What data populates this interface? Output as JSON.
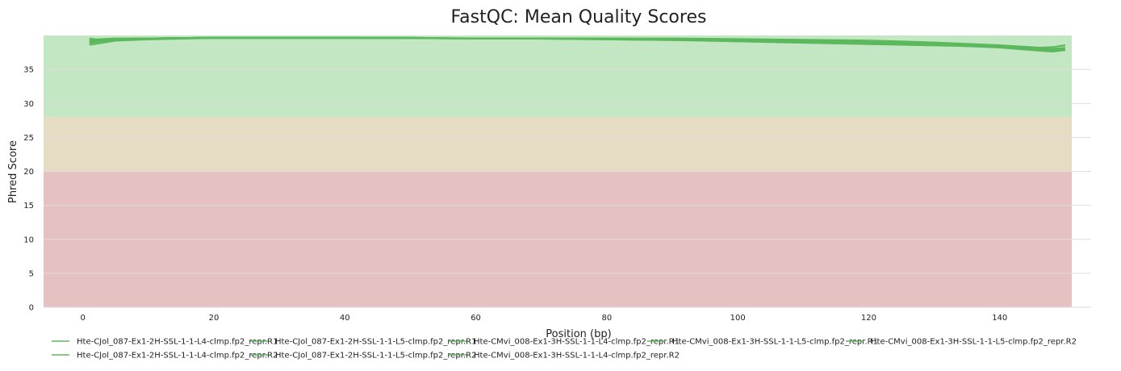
{
  "chart_data": {
    "type": "line",
    "title": "FastQC: Mean Quality Scores",
    "xlabel": "Position (bp)",
    "ylabel": "Phred Score",
    "xlim": [
      -6,
      151
    ],
    "ylim": [
      0,
      40
    ],
    "xticks": [
      0,
      20,
      40,
      60,
      80,
      100,
      120,
      140
    ],
    "yticks": [
      0,
      5,
      10,
      15,
      20,
      25,
      30,
      35
    ],
    "grid": true,
    "legend_position": "bottom",
    "bands": [
      {
        "from": 0,
        "to": 20,
        "color": "#e6c1c1"
      },
      {
        "from": 20,
        "to": 28,
        "color": "#e6dcc4"
      },
      {
        "from": 28,
        "to": 40,
        "color": "#c4e7c3"
      }
    ],
    "line_color": "#5cb85c",
    "x": [
      1,
      3,
      5,
      10,
      20,
      30,
      40,
      50,
      60,
      70,
      80,
      90,
      100,
      110,
      120,
      130,
      140,
      145,
      148,
      150
    ],
    "series": [
      {
        "name": "Hte-CJol_087-Ex1-2H-SSL-1-1-L4-clmp.fp2_repr.R1",
        "values": [
          39.6,
          39.3,
          39.5,
          39.6,
          39.7,
          39.7,
          39.7,
          39.7,
          39.6,
          39.6,
          39.5,
          39.4,
          39.3,
          39.2,
          39.0,
          38.8,
          38.5,
          38.2,
          38.3,
          38.5
        ]
      },
      {
        "name": "Hte-CJol_087-Ex1-2H-SSL-1-1-L5-clmp.fp2_repr.R1",
        "values": [
          38.6,
          38.9,
          39.2,
          39.4,
          39.6,
          39.6,
          39.6,
          39.6,
          39.5,
          39.5,
          39.4,
          39.3,
          39.1,
          38.9,
          38.7,
          38.5,
          38.3,
          38.0,
          37.8,
          37.9
        ]
      },
      {
        "name": "Hte-CMvi_008-Ex1-3H-SSL-1-1-L4-clmp.fp2_repr.R1",
        "values": [
          39.0,
          39.3,
          39.5,
          39.6,
          39.7,
          39.7,
          39.7,
          39.7,
          39.6,
          39.6,
          39.6,
          39.5,
          39.4,
          39.3,
          39.1,
          38.9,
          38.5,
          38.2,
          38.3,
          38.6
        ]
      },
      {
        "name": "Hte-CMvi_008-Ex1-3H-SSL-1-1-L5-clmp.fp2_repr.R1",
        "values": [
          38.8,
          39.1,
          39.3,
          39.5,
          39.6,
          39.6,
          39.6,
          39.6,
          39.5,
          39.5,
          39.4,
          39.3,
          39.2,
          39.0,
          38.8,
          38.6,
          38.3,
          38.0,
          37.7,
          37.9
        ]
      },
      {
        "name": "Hte-CMvi_008-Ex1-3H-SSL-1-1-L5-clmp.fp2_repr.R2",
        "values": [
          39.4,
          39.5,
          39.6,
          39.6,
          39.7,
          39.7,
          39.7,
          39.6,
          39.6,
          39.6,
          39.6,
          39.6,
          39.5,
          39.4,
          39.3,
          39.0,
          38.6,
          38.3,
          38.1,
          38.2
        ]
      },
      {
        "name": "Hte-CJol_087-Ex1-2H-SSL-1-1-L4-clmp.fp2_repr.R2",
        "values": [
          38.9,
          39.2,
          39.4,
          39.5,
          39.6,
          39.6,
          39.6,
          39.6,
          39.6,
          39.5,
          39.5,
          39.4,
          39.3,
          39.1,
          38.9,
          38.6,
          38.2,
          37.8,
          37.6,
          37.8
        ]
      },
      {
        "name": "Hte-CJol_087-Ex1-2H-SSL-1-1-L5-clmp.fp2_repr.R2",
        "values": [
          39.2,
          39.4,
          39.5,
          39.6,
          39.7,
          39.7,
          39.7,
          39.6,
          39.6,
          39.6,
          39.5,
          39.5,
          39.4,
          39.2,
          39.0,
          38.7,
          38.4,
          38.1,
          38.0,
          38.2
        ]
      },
      {
        "name": "Hte-CMvi_008-Ex1-3H-SSL-1-1-L4-clmp.fp2_repr.R2",
        "values": [
          39.1,
          39.3,
          39.5,
          39.6,
          39.7,
          39.7,
          39.7,
          39.6,
          39.6,
          39.6,
          39.5,
          39.5,
          39.3,
          39.2,
          39.0,
          38.7,
          38.3,
          38.0,
          37.9,
          38.1
        ]
      }
    ]
  }
}
